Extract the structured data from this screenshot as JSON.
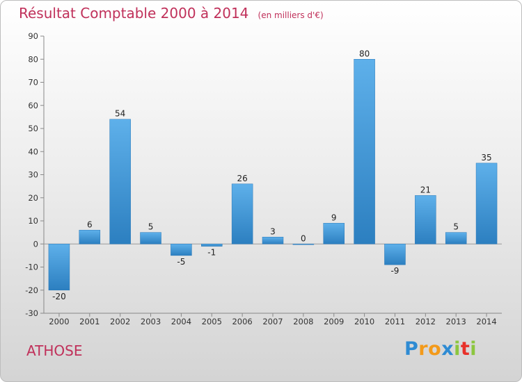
{
  "chart_data": {
    "type": "bar",
    "title": "Résultat Comptable 2000 à 2014",
    "subtitle": "(en milliers d'€)",
    "categories": [
      "2000",
      "2001",
      "2002",
      "2003",
      "2004",
      "2005",
      "2006",
      "2007",
      "2008",
      "2009",
      "2010",
      "2011",
      "2012",
      "2013",
      "2014"
    ],
    "values": [
      -20,
      6,
      54,
      5,
      -5,
      -1,
      26,
      3,
      0,
      9,
      80,
      -9,
      21,
      5,
      35
    ],
    "ylim": [
      -30,
      90
    ],
    "yticks": [
      -30,
      -20,
      -10,
      0,
      10,
      20,
      30,
      40,
      50,
      60,
      70,
      80,
      90
    ],
    "grid": false,
    "bar_color": "#3d95d8"
  },
  "location": "ATHOSE",
  "logo": {
    "letters": [
      "P",
      "r",
      "o",
      "x",
      "i",
      "t",
      "i"
    ],
    "colors": [
      "#2e8bd3",
      "#f39a1a",
      "#f39a1a",
      "#2e8bd3",
      "#8cc63f",
      "#e8312a",
      "#8cc63f"
    ]
  }
}
